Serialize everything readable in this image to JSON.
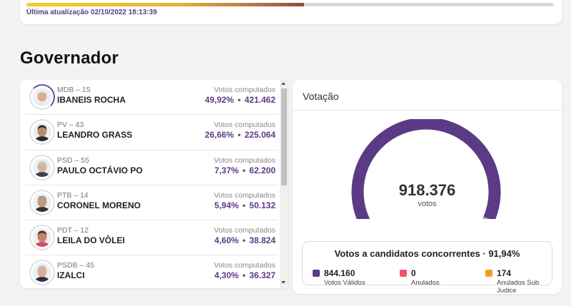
{
  "top": {
    "updated_text": "Última atualização 02/10/2022 18:13:39",
    "progress_percent": 52.6
  },
  "section": {
    "title": "Governador"
  },
  "candidates": [
    {
      "party": "MDB – 15",
      "name": "IBANEIS ROCHA",
      "votes_label": "Votos computados",
      "percent": "49,92%",
      "votes": "421.462",
      "leader": true,
      "skin": "#d9ad8f",
      "hair": "#e6e6e6",
      "shirt": "#e9e9f0"
    },
    {
      "party": "PV – 43",
      "name": "LEANDRO GRASS",
      "votes_label": "Votos computados",
      "percent": "26,66%",
      "votes": "225.064",
      "leader": false,
      "skin": "#b98a6c",
      "hair": "#3a2a22",
      "shirt": "#2b2b2b"
    },
    {
      "party": "PSD – 55",
      "name": "PAULO OCTÁVIO PO",
      "votes_label": "Votos computados",
      "percent": "7,37%",
      "votes": "62.200",
      "leader": false,
      "skin": "#d8b3a0",
      "hair": "#cfcfcf",
      "shirt": "#3a3f55"
    },
    {
      "party": "PTB – 14",
      "name": "CORONEL MORENO",
      "votes_label": "Votos computados",
      "percent": "5,94%",
      "votes": "50.132",
      "leader": false,
      "skin": "#c99878",
      "hair": "#9a9a9a",
      "shirt": "#333333"
    },
    {
      "party": "PDT – 12",
      "name": "LEILA DO VÔLEI",
      "votes_label": "Votos computados",
      "percent": "4,60%",
      "votes": "38.824",
      "leader": false,
      "skin": "#c08566",
      "hair": "#5a2e1f",
      "shirt": "#d24b6a"
    },
    {
      "party": "PSDB – 45",
      "name": "IZALCI",
      "votes_label": "Votos computados",
      "percent": "4,30%",
      "votes": "36.327",
      "leader": false,
      "skin": "#dcb096",
      "hair": "#bdbdbd",
      "shirt": "#2f2f3f"
    }
  ],
  "votacao": {
    "title": "Votação",
    "total": "918.376",
    "unit": "votos",
    "gauge": {
      "valid_fraction": 0.9194,
      "null_fraction": 0.0804
    },
    "summary_title": "Votos a candidatos concorrentes · 91,94%",
    "legend": [
      {
        "value": "844.160",
        "label": "Votos Válidos",
        "color": "#5b3a86"
      },
      {
        "value": "0",
        "label": "Anulados",
        "color": "#f0566e"
      },
      {
        "value": "174",
        "label": "Anulados Sub Judice",
        "color": "#f0a020"
      }
    ]
  },
  "colors": {
    "valid": "#5b3a86",
    "null_segment": "#b79cc4",
    "blank_segment": "#f5b5c4",
    "accent_text": "#5b3a86"
  }
}
